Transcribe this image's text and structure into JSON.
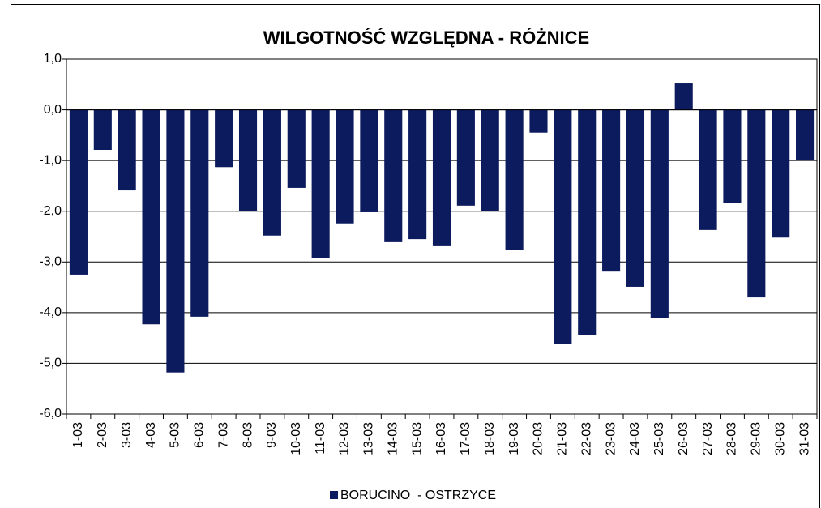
{
  "chart_data": {
    "type": "bar",
    "title": "WILGOTNOŚĆ WZGLĘDNA - RÓŻNICE",
    "categories": [
      "1-03",
      "2-03",
      "3-03",
      "4-03",
      "5-03",
      "6-03",
      "7-03",
      "8-03",
      "9-03",
      "10-03",
      "11-03",
      "12-03",
      "13-03",
      "14-03",
      "15-03",
      "16-03",
      "17-03",
      "18-03",
      "19-03",
      "20-03",
      "21-03",
      "22-03",
      "23-03",
      "24-03",
      "25-03",
      "26-03",
      "27-03",
      "28-03",
      "29-03",
      "30-03",
      "31-03"
    ],
    "series": [
      {
        "name": "BORUCINO  - OSTRZYCE",
        "color": "#0c1a5e",
        "values": [
          -3.25,
          -0.79,
          -1.59,
          -4.23,
          -5.18,
          -4.08,
          -1.13,
          -1.99,
          -2.48,
          -1.54,
          -2.92,
          -2.24,
          -2.02,
          -2.61,
          -2.55,
          -2.69,
          -1.89,
          -1.99,
          -2.77,
          -0.45,
          -4.61,
          -4.45,
          -3.19,
          -3.49,
          -4.11,
          0.52,
          -2.37,
          -1.83,
          -3.7,
          -2.52,
          -1.0
        ]
      }
    ],
    "ylim": [
      -6,
      1
    ],
    "yticks": [
      {
        "value": -6,
        "label": "-6,0"
      },
      {
        "value": -5,
        "label": "-5,0"
      },
      {
        "value": -4,
        "label": "-4,0"
      },
      {
        "value": -3,
        "label": "-3,0"
      },
      {
        "value": -2,
        "label": "-2,0"
      },
      {
        "value": -1,
        "label": "-1,0"
      },
      {
        "value": 0,
        "label": "0,0"
      },
      {
        "value": 1,
        "label": "1,0"
      }
    ],
    "grid": true,
    "legend": "bottom"
  }
}
